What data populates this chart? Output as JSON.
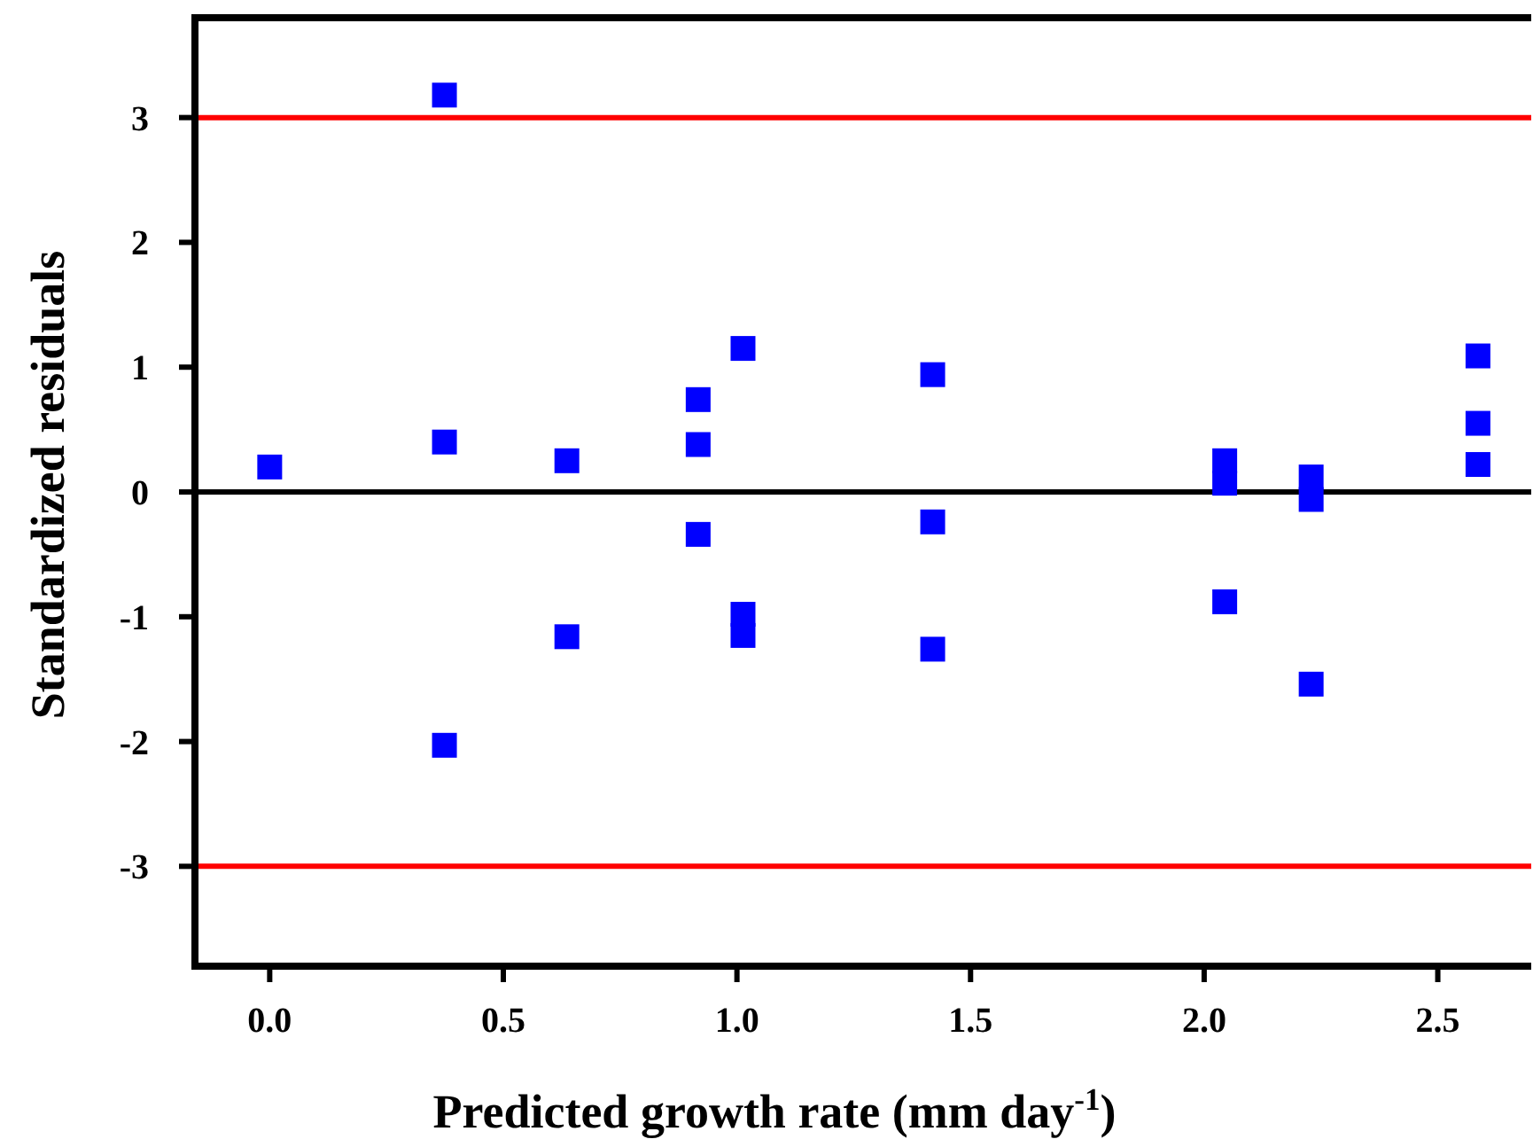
{
  "chart_data": {
    "type": "scatter",
    "xlabel": "Predicted growth rate (mm day$^{-1}$)",
    "ylabel": "Standardized residuals",
    "x": [
      0.0,
      0.374,
      0.374,
      0.374,
      0.636,
      0.636,
      0.917,
      0.917,
      0.917,
      1.013,
      1.013,
      1.013,
      1.419,
      1.419,
      1.419,
      2.044,
      2.044,
      2.044,
      2.229,
      2.229,
      2.229,
      2.586,
      2.586,
      2.586
    ],
    "series": [
      {
        "color": "#0000ff",
        "values": [
          0.2,
          3.18,
          0.4,
          -2.03,
          0.25,
          -1.16,
          0.74,
          0.38,
          -0.34,
          1.15,
          -0.98,
          -1.15,
          0.94,
          -0.24,
          -1.26,
          0.25,
          0.07,
          -0.88,
          0.12,
          -0.06,
          -1.54,
          1.09,
          0.55,
          0.22
        ]
      }
    ],
    "marker": "square",
    "xlim": [
      -0.16,
      2.7
    ],
    "ylim": [
      -3.8,
      3.8
    ],
    "xticks": [
      {
        "value": 0,
        "label": "0.0"
      },
      {
        "value": 0.5,
        "label": "0.5"
      },
      {
        "value": 1,
        "label": "1.0"
      },
      {
        "value": 1.5,
        "label": "1.5"
      },
      {
        "value": 2,
        "label": "2.0"
      },
      {
        "value": 2.5,
        "label": "2.5"
      }
    ],
    "yticks": [
      -3,
      -2,
      -1,
      0,
      1,
      2,
      3
    ],
    "ref_lines": [
      {
        "axis": "y",
        "value": 3,
        "color": "#ff0000"
      },
      {
        "axis": "y",
        "value": 0,
        "color": "#000000"
      },
      {
        "axis": "y",
        "value": -3,
        "color": "#ff0000"
      }
    ]
  }
}
